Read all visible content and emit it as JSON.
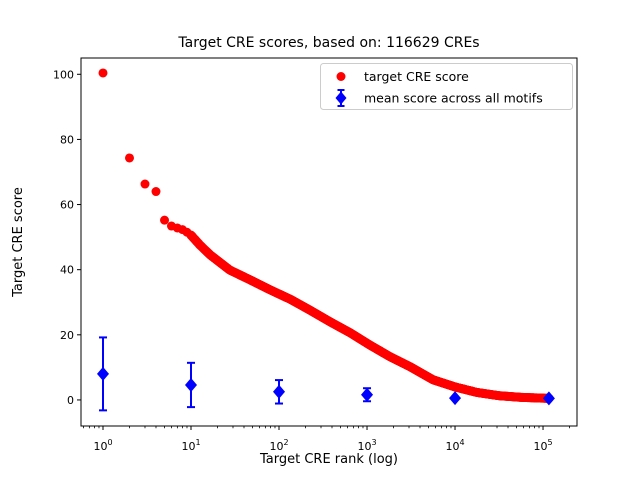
{
  "chart_data": {
    "type": "scatter",
    "title": "Target CRE scores, based on: 116629 CREs",
    "xlabel": "Target CRE rank (log)",
    "ylabel": "Target CRE score",
    "n_cres_in_title": 116629,
    "x_axis": {
      "scale": "log",
      "tick_base": "10",
      "tick_exponents": [
        0,
        1,
        2,
        3,
        4,
        5
      ],
      "lim_log10": [
        -0.25,
        5.386
      ],
      "minor_ticks": true
    },
    "y_axis": {
      "ticks": [
        0,
        20,
        40,
        60,
        80,
        100
      ],
      "lim": [
        -8,
        105
      ]
    },
    "legend": {
      "position": "upper right",
      "framed": true,
      "border_color": "#cccccc"
    },
    "series": [
      {
        "label": "target CRE score",
        "color": "#ff0000",
        "marker": "circle",
        "curve_profile_log10_rank_vs_score": [
          [
            0.0,
            100.4
          ],
          [
            0.301,
            74.3
          ],
          [
            0.477,
            66.3
          ],
          [
            0.602,
            64.0
          ],
          [
            0.699,
            55.2
          ],
          [
            0.778,
            53.4
          ],
          [
            0.845,
            52.8
          ],
          [
            0.903,
            52.3
          ],
          [
            0.954,
            51.5
          ],
          [
            1.0,
            50.6
          ],
          [
            1.1,
            47.6
          ],
          [
            1.22,
            44.5
          ],
          [
            1.44,
            39.9
          ],
          [
            1.67,
            36.9
          ],
          [
            1.9,
            33.8
          ],
          [
            2.13,
            30.9
          ],
          [
            2.35,
            27.6
          ],
          [
            2.58,
            24.0
          ],
          [
            2.81,
            20.6
          ],
          [
            3.03,
            16.9
          ],
          [
            3.26,
            13.3
          ],
          [
            3.49,
            10.2
          ],
          [
            3.75,
            6.2
          ],
          [
            4.0,
            4.0
          ],
          [
            4.25,
            2.3
          ],
          [
            4.5,
            1.3
          ],
          [
            4.75,
            0.8
          ],
          [
            5.0,
            0.55
          ],
          [
            5.0668,
            0.5
          ]
        ]
      },
      {
        "label": "mean score across all motifs",
        "color": "#0000ff",
        "marker": "diamond",
        "points": [
          {
            "rank": 1,
            "mean": 8.0,
            "err": 11.2
          },
          {
            "rank": 10,
            "mean": 4.6,
            "err": 6.8
          },
          {
            "rank": 100,
            "mean": 2.5,
            "err": 3.6
          },
          {
            "rank": 1000,
            "mean": 1.6,
            "err": 2.0
          },
          {
            "rank": 10000,
            "mean": 0.55,
            "err": 0.4
          },
          {
            "rank": 116629,
            "mean": 0.5,
            "err": 0.4
          }
        ]
      }
    ]
  }
}
